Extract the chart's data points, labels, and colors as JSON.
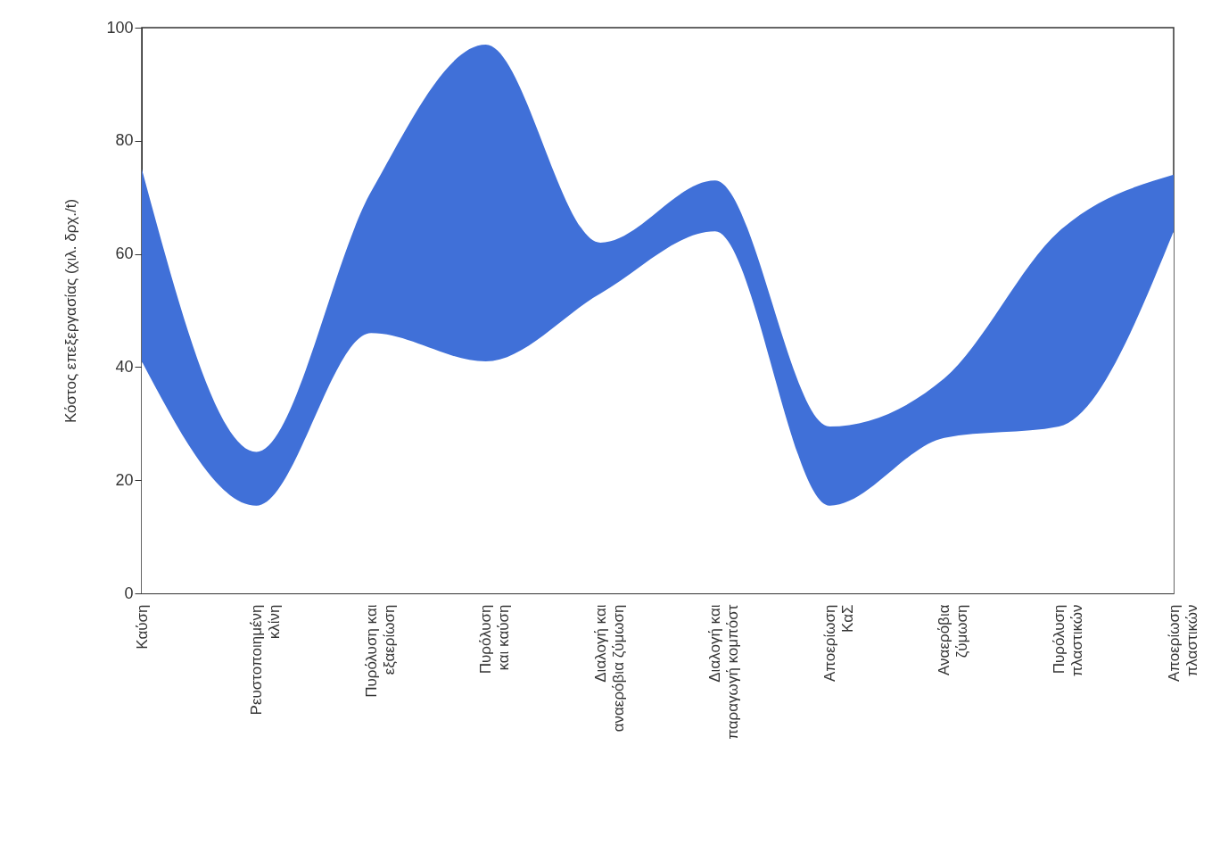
{
  "chart_data": {
    "type": "area",
    "stacked": true,
    "ylabel": "Κόστος επεξεργασίας (χιλ. δρχ./t)",
    "categories": [
      "Καύση",
      "Ρευστοποιημένη κλίνη",
      "Πυρόλυση και εξαερίωση",
      "Πυρόλυση και καύση",
      "Διαλογή και αναερόβια ζύμωση",
      "Διαλογή και παραγωγή κομπόστ",
      "Αποερίωση ΚαΣ",
      "Αναερόβια ζύμωση",
      "Πυρόλυση πλαστικών",
      "Αποερίωση πλαστικών"
    ],
    "series": [
      {
        "color": "#ffffff",
        "values": [
          41,
          15.5,
          46,
          41,
          53,
          64,
          15.5,
          27.5,
          29.5,
          64
        ]
      },
      {
        "color": "#4070d8",
        "values": [
          34,
          9.5,
          25,
          56,
          9,
          9,
          14,
          10.5,
          34.5,
          10
        ]
      }
    ],
    "ylim": [
      0,
      100
    ],
    "yticks": [
      0,
      20,
      40,
      60,
      80,
      100
    ],
    "grid": false
  }
}
